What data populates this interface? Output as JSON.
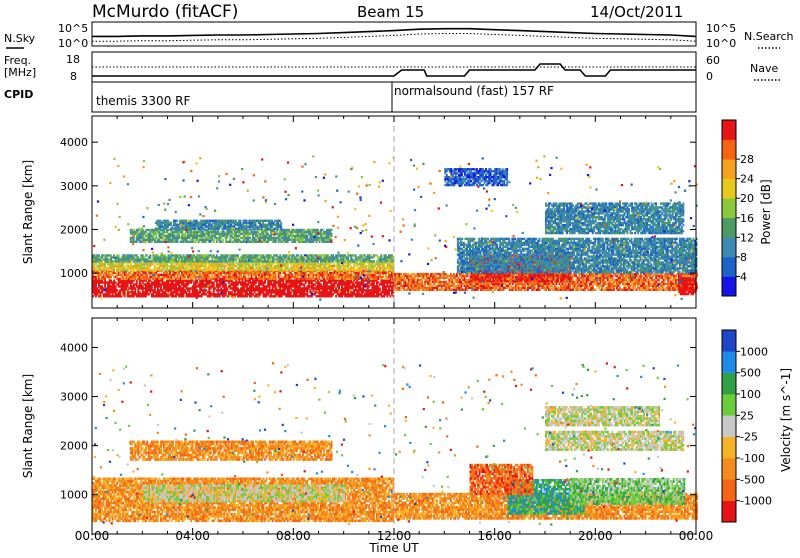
{
  "chart_data": [
    {
      "type": "line",
      "header": {
        "station": "McMurdo (fitACF)",
        "beam": "Beam 15",
        "date": "14/Oct/2011"
      },
      "left_labels": [
        "N.Sky",
        "Freq.",
        "[MHz]",
        "CPID"
      ],
      "left_ticks_noise": [
        "10^5",
        "10^0"
      ],
      "left_ticks_freq": [
        "18",
        "8"
      ],
      "right_labels": [
        "N.Search",
        "Nave"
      ],
      "right_ticks_noise": [
        "10^5",
        "10^0"
      ],
      "right_ticks_nave": [
        "60",
        "0"
      ],
      "cpid_segments": [
        {
          "label": "themis 3300 RF",
          "start_ut": 0
        },
        {
          "label": "normalsound (fast) 157 RF",
          "start_ut": 12
        }
      ],
      "series": [
        {
          "name": "N.Sky",
          "x": [
            0,
            1,
            2,
            3,
            4,
            5,
            6,
            7,
            8,
            9,
            10,
            11,
            12,
            13,
            14,
            15,
            16,
            17,
            18,
            19,
            20,
            21,
            22,
            23,
            24
          ],
          "log10_values": [
            2.0,
            2.0,
            2.1,
            2.1,
            2.2,
            2.3,
            2.3,
            2.4,
            2.5,
            2.6,
            2.8,
            3.0,
            3.2,
            3.5,
            3.6,
            3.6,
            3.4,
            3.2,
            3.0,
            2.8,
            2.6,
            2.5,
            2.4,
            2.3,
            2.0
          ]
        },
        {
          "name": "N.Search",
          "x": [
            0,
            1,
            2,
            3,
            4,
            5,
            6,
            7,
            8,
            9,
            10,
            11,
            12,
            13,
            14,
            15,
            16,
            17,
            18,
            19,
            20,
            21,
            22,
            23,
            24
          ],
          "log10_values": [
            1.0,
            1.0,
            1.1,
            1.1,
            1.2,
            1.3,
            1.3,
            1.4,
            1.5,
            1.6,
            1.8,
            2.0,
            2.2,
            2.5,
            2.6,
            2.6,
            2.4,
            2.2,
            2.0,
            1.8,
            1.6,
            1.5,
            1.4,
            1.3,
            1.0
          ]
        },
        {
          "name": "Freq.",
          "x": [
            0,
            12,
            12.3,
            13.2,
            13.3,
            14.8,
            15.0,
            17.6,
            17.8,
            18.6,
            18.8,
            19.4,
            19.6,
            20.4,
            20.6,
            24
          ],
          "values": [
            10,
            10,
            12,
            12,
            10,
            10,
            12,
            12,
            14,
            14,
            12,
            12,
            10,
            10,
            12,
            12
          ]
        },
        {
          "name": "Nave",
          "x": [
            0,
            12,
            24
          ],
          "values": [
            30,
            30,
            30
          ]
        }
      ]
    },
    {
      "type": "heatmap",
      "title": "",
      "xlabel": "Time UT",
      "ylabel": "Slant Range [km]",
      "x_ticks": [
        "00:00",
        "04:00",
        "08:00",
        "12:00",
        "16:00",
        "20:00",
        "00:00"
      ],
      "y_ticks": [
        1000,
        2000,
        3000,
        4000
      ],
      "ylim": [
        200,
        4600
      ],
      "xlim_hours": [
        0,
        24
      ],
      "colorbar": {
        "label": "Power [dB]",
        "ticks": [
          4,
          8,
          12,
          16,
          20,
          24,
          28
        ],
        "colors": [
          "#1414e6",
          "#1e64c8",
          "#3c8ab4",
          "#4c9a64",
          "#8cc83c",
          "#e6c81e",
          "#f5a01e",
          "#f56414",
          "#e61414"
        ]
      },
      "bands": [
        {
          "t0": 0.0,
          "t1": 12.0,
          "r0": 450,
          "r1": 850,
          "level": 9
        },
        {
          "t0": 0.0,
          "t1": 12.0,
          "r0": 850,
          "r1": 1050,
          "level": 7
        },
        {
          "t0": 0.0,
          "t1": 12.0,
          "r0": 1050,
          "r1": 1250,
          "level": 5
        },
        {
          "t0": 0.0,
          "t1": 12.0,
          "r0": 1250,
          "r1": 1400,
          "level": 3
        },
        {
          "t0": 1.5,
          "t1": 9.5,
          "r0": 1700,
          "r1": 2000,
          "level": 3
        },
        {
          "t0": 2.5,
          "t1": 7.5,
          "r0": 2000,
          "r1": 2200,
          "level": 2
        },
        {
          "t0": 12.0,
          "t1": 24.0,
          "r0": 600,
          "r1": 1000,
          "level": 7
        },
        {
          "t0": 15.0,
          "t1": 19.0,
          "r0": 800,
          "r1": 1400,
          "level": 8
        },
        {
          "t0": 14.5,
          "t1": 24.0,
          "r0": 1000,
          "r1": 1800,
          "level": 2
        },
        {
          "t0": 18.0,
          "t1": 23.5,
          "r0": 1900,
          "r1": 2600,
          "level": 2
        },
        {
          "t0": 14.0,
          "t1": 16.5,
          "r0": 3000,
          "r1": 3400,
          "level": 1
        },
        {
          "t0": 23.3,
          "t1": 24.0,
          "r0": 500,
          "r1": 900,
          "level": 9
        }
      ]
    },
    {
      "type": "heatmap",
      "title": "",
      "xlabel": "Time UT",
      "ylabel": "Slant Range [km]",
      "x_ticks": [
        "00:00",
        "04:00",
        "08:00",
        "12:00",
        "16:00",
        "20:00",
        "00:00"
      ],
      "y_ticks": [
        1000,
        2000,
        3000,
        4000
      ],
      "ylim": [
        200,
        4600
      ],
      "xlim_hours": [
        0,
        24
      ],
      "colorbar": {
        "label": "Velocity [m s^-1]",
        "ticks": [
          1000,
          500,
          100,
          25,
          -25,
          -100,
          -500,
          -1000
        ],
        "colors": [
          "#1e46c8",
          "#1e8ce6",
          "#2ea046",
          "#6ccd3c",
          "#c8c8c8",
          "#f5b428",
          "#f58c1e",
          "#f56414",
          "#e61414"
        ]
      },
      "bands": [
        {
          "t0": 0.0,
          "t1": 12.0,
          "r0": 450,
          "r1": 1350,
          "level": 6
        },
        {
          "t0": 2.0,
          "t1": 10.0,
          "r0": 850,
          "r1": 1200,
          "level": 4
        },
        {
          "t0": 1.5,
          "t1": 9.5,
          "r0": 1700,
          "r1": 2100,
          "level": 6
        },
        {
          "t0": 12.0,
          "t1": 24.0,
          "r0": 500,
          "r1": 1000,
          "level": 6
        },
        {
          "t0": 16.5,
          "t1": 19.5,
          "r0": 600,
          "r1": 1300,
          "level": 2
        },
        {
          "t0": 19.0,
          "t1": 23.5,
          "r0": 800,
          "r1": 1300,
          "level": 3
        },
        {
          "t0": 18.0,
          "t1": 23.5,
          "r0": 1900,
          "r1": 2300,
          "level": 4
        },
        {
          "t0": 18.0,
          "t1": 22.5,
          "r0": 2400,
          "r1": 2800,
          "level": 4
        },
        {
          "t0": 15.0,
          "t1": 17.5,
          "r0": 1000,
          "r1": 1600,
          "level": 7
        }
      ]
    }
  ]
}
